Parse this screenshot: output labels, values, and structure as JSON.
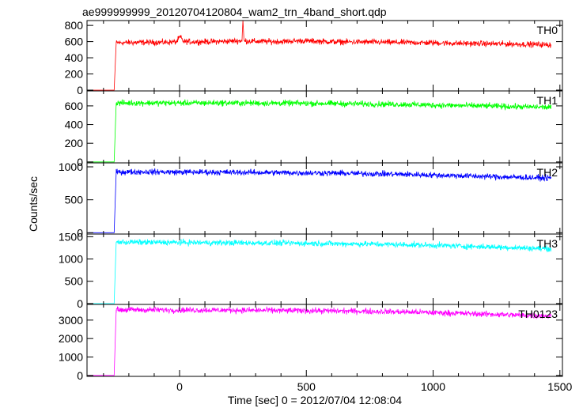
{
  "title": "ae999999999_20120704120804_wam2_trn_4band_short.qdp",
  "chart_data": {
    "type": "line",
    "title": "ae999999999_20120704120804_wam2_trn_4band_short.qdp",
    "xlabel": "Time [sec] 0 = 2012/07/04 12:08:04",
    "ylabel": "Counts/sec",
    "xlim": [
      -365,
      1510
    ],
    "x_ticks": [
      0,
      500,
      1000,
      1500
    ],
    "x_tick_labels": [
      "0",
      "500",
      "1000",
      "1500"
    ],
    "shared_x": true,
    "grid": false,
    "panels": [
      {
        "name": "TH0",
        "color": "#ff0000",
        "ylim": [
          -10,
          860
        ],
        "y_ticks": [
          0,
          200,
          400,
          600,
          800
        ],
        "y_tick_labels": [
          "0",
          "200",
          "400",
          "600",
          "800"
        ],
        "series": [
          {
            "name": "TH0",
            "x": [
              -360,
              -270,
              -258,
              -250,
              -150,
              -50,
              0,
              50,
              150,
              245,
              300,
              400,
              480,
              600,
              700,
              800,
              900,
              1000,
              1100,
              1200,
              1300,
              1400,
              1465
            ],
            "y": [
              0,
              0,
              0,
              585,
              590,
              592,
              600,
              598,
              600,
              610,
              602,
              600,
              610,
              598,
              595,
              592,
              588,
              585,
              578,
              575,
              570,
              565,
              560
            ]
          }
        ],
        "annotations": [
          {
            "label": "spike",
            "x": 250,
            "y": 860
          },
          {
            "label": "bump",
            "x": 2,
            "y": 700
          }
        ]
      },
      {
        "name": "TH1",
        "color": "#00ff00",
        "ylim": [
          -10,
          760
        ],
        "y_ticks": [
          0,
          200,
          400,
          600
        ],
        "y_tick_labels": [
          "0",
          "200",
          "400",
          "600"
        ],
        "series": [
          {
            "name": "TH1",
            "x": [
              -360,
              -270,
              -258,
              -250,
              -150,
              0,
              150,
              300,
              450,
              600,
              750,
              900,
              1050,
              1200,
              1350,
              1465
            ],
            "y": [
              0,
              0,
              0,
              630,
              632,
              630,
              632,
              630,
              628,
              625,
              620,
              615,
              605,
              600,
              590,
              585
            ]
          }
        ]
      },
      {
        "name": "TH2",
        "color": "#0000ff",
        "ylim": [
          -20,
          1060
        ],
        "y_ticks": [
          0,
          500,
          1000
        ],
        "y_tick_labels": [
          "0",
          "500",
          "1000"
        ],
        "series": [
          {
            "name": "TH2",
            "x": [
              -360,
              -270,
              -258,
              -250,
              -150,
              0,
              150,
              300,
              450,
              600,
              750,
              900,
              1050,
              1200,
              1350,
              1465
            ],
            "y": [
              0,
              0,
              0,
              920,
              925,
              920,
              918,
              915,
              910,
              905,
              895,
              885,
              870,
              855,
              840,
              830
            ]
          }
        ]
      },
      {
        "name": "TH3",
        "color": "#00ffff",
        "ylim": [
          -20,
          1560
        ],
        "y_ticks": [
          0,
          500,
          1000,
          1500
        ],
        "y_tick_labels": [
          "0",
          "500",
          "1000",
          "1500"
        ],
        "series": [
          {
            "name": "TH3",
            "x": [
              -360,
              -270,
              -258,
              -250,
              -150,
              0,
              150,
              300,
              450,
              600,
              750,
              900,
              1050,
              1200,
              1350,
              1465
            ],
            "y": [
              0,
              0,
              0,
              1380,
              1375,
              1370,
              1365,
              1360,
              1355,
              1345,
              1335,
              1320,
              1300,
              1275,
              1250,
              1230
            ]
          }
        ]
      },
      {
        "name": "TH0123",
        "color": "#ff00ff",
        "ylim": [
          -50,
          3850
        ],
        "y_ticks": [
          0,
          1000,
          2000,
          3000
        ],
        "y_tick_labels": [
          "0",
          "1000",
          "2000",
          "3000"
        ],
        "series": [
          {
            "name": "TH0123",
            "x": [
              -360,
              -270,
              -258,
              -250,
              -150,
              0,
              150,
              300,
              450,
              600,
              750,
              900,
              1050,
              1200,
              1350,
              1465
            ],
            "y": [
              0,
              0,
              0,
              3560,
              3555,
              3545,
              3540,
              3530,
              3515,
              3500,
              3475,
              3440,
              3390,
              3330,
              3260,
              3220
            ]
          }
        ]
      }
    ]
  }
}
